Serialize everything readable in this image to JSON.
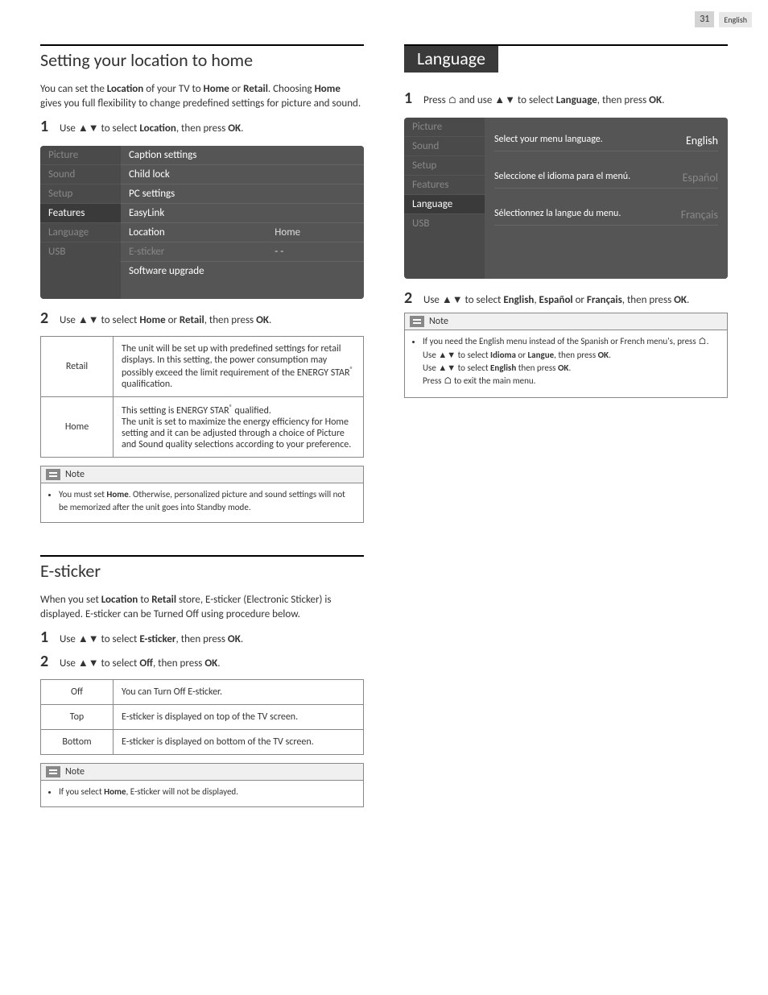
{
  "page": {
    "number": "31",
    "lang": "English"
  },
  "col1": {
    "section1": {
      "title": "Setting your location to home",
      "intro_html": "You can set the <b>Location</b> of your TV to <b>Home</b> or <b>Retail</b>. Choosing <b>Home</b> gives you full flexibility to change predefined settings for picture and sound.",
      "step1_num": "1",
      "step1_html": "Use ▲▼ to select <b>Location</b>, then press <b>OK</b>.",
      "menu_sidebar": [
        "Picture",
        "Sound",
        "Setup",
        "Features",
        "Language",
        "USB"
      ],
      "menu_sidebar_active": "Features",
      "menu_items": [
        {
          "label": "Caption settings",
          "val": "",
          "dim": false
        },
        {
          "label": "Child lock",
          "val": "",
          "dim": false
        },
        {
          "label": "PC settings",
          "val": "",
          "dim": false
        },
        {
          "label": "EasyLink",
          "val": "",
          "dim": false
        },
        {
          "label": "Location",
          "val": "Home",
          "dim": false
        },
        {
          "label": "E-sticker",
          "val": "- -",
          "dim": true
        },
        {
          "label": "Software upgrade",
          "val": "",
          "dim": false
        }
      ],
      "step2_num": "2",
      "step2_html": "Use ▲▼ to select <b>Home</b> or <b>Retail</b>, then press <b>OK</b>.",
      "options": [
        {
          "name": "Retail",
          "desc": "The unit will be set up with predefined settings for retail displays. In this setting, the power consumption may possibly exceed the limit requirement of the ENERGY STAR<sup>®</sup> qualification."
        },
        {
          "name": "Home",
          "desc": "This setting is ENERGY STAR<sup>®</sup> qualified.<br>The unit is set to maximize the energy efficiency for Home setting and it can be adjusted through a choice of Picture and Sound quality selections according to your preference."
        }
      ],
      "note_title": "Note",
      "note_html": "You must set <b>Home</b>. Otherwise, personalized picture and sound settings will not be memorized after the unit goes into Standby mode."
    },
    "section2": {
      "title": "E-sticker",
      "intro_html": "When you set <b>Location</b> to <b>Retail</b> store, E-sticker (Electronic Sticker) is displayed. E-sticker can be Turned Off using procedure below.",
      "step1_num": "1",
      "step1_html": "Use ▲▼ to select <b>E-sticker</b>, then press <b>OK</b>.",
      "step2_num": "2",
      "step2_html": "Use ▲▼ to select <b>Off</b>, then press <b>OK</b>.",
      "options": [
        {
          "name": "Off",
          "desc": "You can Turn Off E-sticker."
        },
        {
          "name": "Top",
          "desc": "E-sticker is displayed on top of the TV screen."
        },
        {
          "name": "Bottom",
          "desc": "E-sticker is displayed on bottom of the TV screen."
        }
      ],
      "note_title": "Note",
      "note_html": "If you select <b>Home</b>, E-sticker will not be displayed."
    }
  },
  "col2": {
    "section1": {
      "title": "Language",
      "step1_num": "1",
      "step1_html": "Press <span class='home-icon'>⌂</span> and use ▲▼ to select <b>Language</b>, then press <b>OK</b>.",
      "menu_sidebar": [
        "Picture",
        "Sound",
        "Setup",
        "Features",
        "Language",
        "USB"
      ],
      "menu_sidebar_active": "Language",
      "lang_rows": [
        {
          "label": "Select your menu language.",
          "val": "English",
          "dim": false
        },
        {
          "label": "Seleccione el idioma para el menú.",
          "val": "Español",
          "dim": true
        },
        {
          "label": "Sélectionnez la langue du menu.",
          "val": "Français",
          "dim": true
        }
      ],
      "step2_num": "2",
      "step2_html": "Use ▲▼ to select <b>English</b>, <b>Español</b> or <b>Français</b>, then press <b>OK</b>.",
      "note_title": "Note",
      "note_html": "If you need the English menu instead of the Spanish or French menu's, press <span class='home-icon'>⌂</span>.<br>Use ▲▼ to select <b>Idioma</b> or <b>Langue</b>, then press <b>OK</b>.<br>Use ▲▼ to select <b>English</b> then press <b>OK</b>.<br>Press <span class='home-icon'>⌂</span> to exit the main menu."
    }
  }
}
